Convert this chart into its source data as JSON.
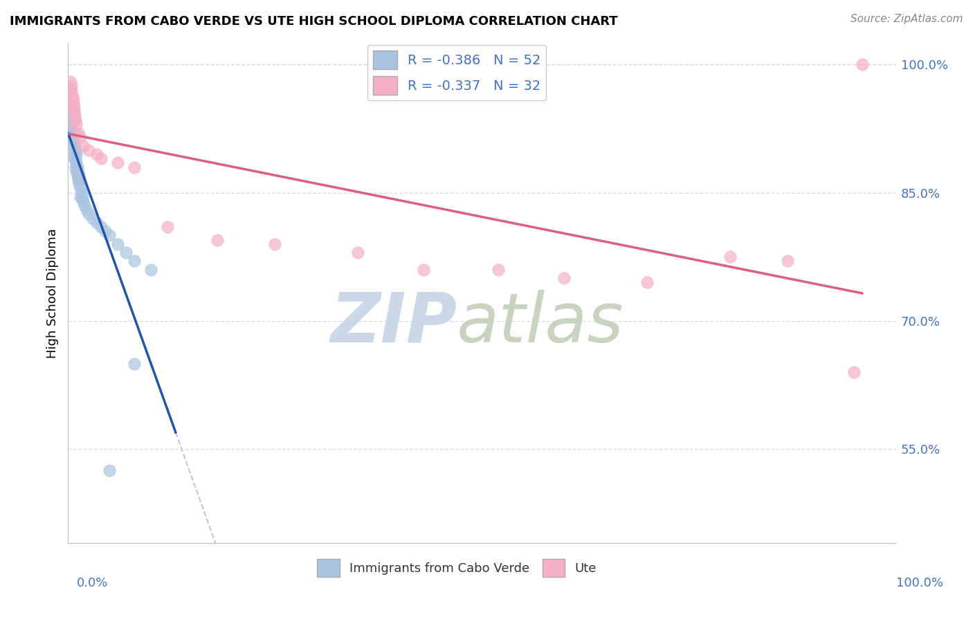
{
  "title": "IMMIGRANTS FROM CABO VERDE VS UTE HIGH SCHOOL DIPLOMA CORRELATION CHART",
  "source": "Source: ZipAtlas.com",
  "ylabel": "High School Diploma",
  "legend_label1": "Immigrants from Cabo Verde",
  "legend_label2": "Ute",
  "R1": -0.386,
  "N1": 52,
  "R2": -0.337,
  "N2": 32,
  "blue_color": "#aac4e0",
  "pink_color": "#f5b0c8",
  "trendline_blue": "#2255aa",
  "trendline_pink": "#d96080",
  "trendline_dashed_color": "#c0c8d4",
  "background_color": "#ffffff",
  "grid_color": "#d8dde8",
  "watermark_zip_color": "#ccd8e8",
  "watermark_atlas_color": "#c8d4c0",
  "xlim": [
    0.0,
    1.0
  ],
  "ylim": [
    0.44,
    1.025
  ],
  "y_ticks": [
    0.55,
    0.7,
    0.85,
    1.0
  ],
  "y_tick_labels": [
    "55.0%",
    "70.0%",
    "85.0%",
    "100.0%"
  ],
  "blue_scatter_x": [
    0.001,
    0.002,
    0.002,
    0.003,
    0.003,
    0.004,
    0.004,
    0.005,
    0.005,
    0.005,
    0.006,
    0.006,
    0.006,
    0.007,
    0.007,
    0.007,
    0.007,
    0.008,
    0.008,
    0.008,
    0.009,
    0.009,
    0.009,
    0.01,
    0.01,
    0.01,
    0.011,
    0.011,
    0.012,
    0.012,
    0.013,
    0.013,
    0.014,
    0.015,
    0.015,
    0.016,
    0.017,
    0.018,
    0.02,
    0.022,
    0.025,
    0.03,
    0.035,
    0.04,
    0.045,
    0.05,
    0.06,
    0.07,
    0.08,
    0.1,
    0.05,
    0.08
  ],
  "blue_scatter_y": [
    0.96,
    0.94,
    0.97,
    0.93,
    0.96,
    0.925,
    0.955,
    0.92,
    0.95,
    0.915,
    0.94,
    0.91,
    0.945,
    0.935,
    0.91,
    0.9,
    0.89,
    0.92,
    0.905,
    0.895,
    0.9,
    0.89,
    0.88,
    0.895,
    0.885,
    0.875,
    0.88,
    0.87,
    0.875,
    0.865,
    0.87,
    0.86,
    0.865,
    0.855,
    0.845,
    0.85,
    0.845,
    0.84,
    0.835,
    0.83,
    0.825,
    0.82,
    0.815,
    0.81,
    0.805,
    0.8,
    0.79,
    0.78,
    0.77,
    0.76,
    0.525,
    0.65
  ],
  "pink_scatter_x": [
    0.003,
    0.004,
    0.004,
    0.005,
    0.005,
    0.006,
    0.006,
    0.007,
    0.007,
    0.008,
    0.009,
    0.01,
    0.012,
    0.015,
    0.018,
    0.025,
    0.035,
    0.04,
    0.06,
    0.08,
    0.12,
    0.18,
    0.25,
    0.35,
    0.43,
    0.52,
    0.6,
    0.7,
    0.8,
    0.87,
    0.95,
    0.96
  ],
  "pink_scatter_y": [
    0.98,
    0.97,
    0.975,
    0.965,
    0.96,
    0.955,
    0.96,
    0.95,
    0.945,
    0.94,
    0.935,
    0.93,
    0.92,
    0.915,
    0.905,
    0.9,
    0.895,
    0.89,
    0.885,
    0.88,
    0.81,
    0.795,
    0.79,
    0.78,
    0.76,
    0.76,
    0.75,
    0.745,
    0.775,
    0.77,
    0.64,
    1.0
  ]
}
